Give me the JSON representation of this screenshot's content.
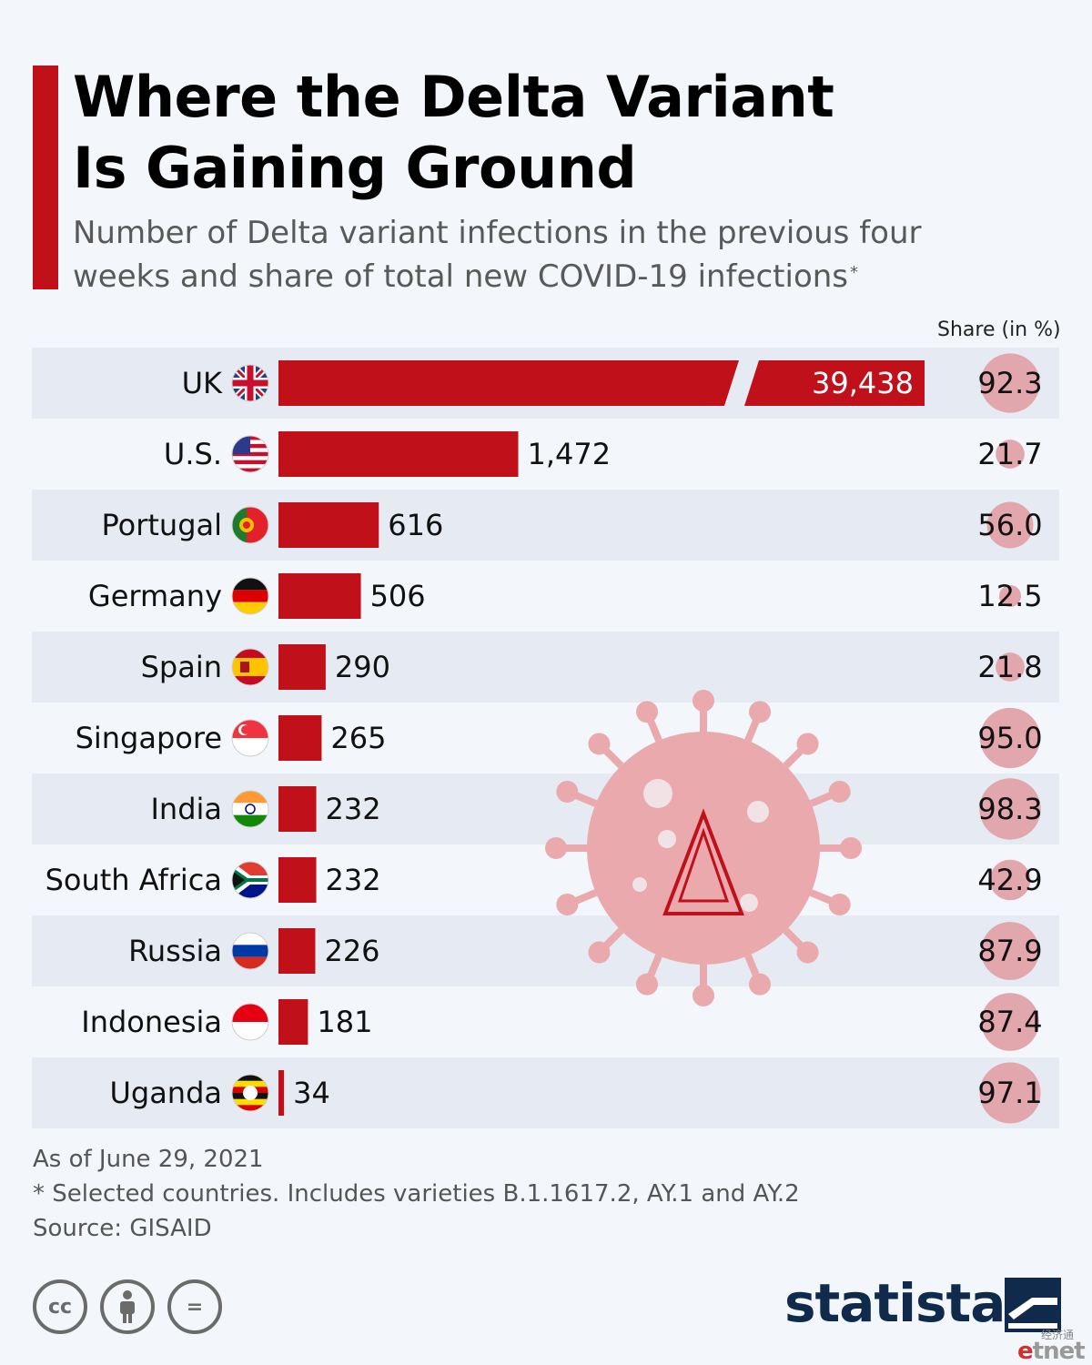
{
  "title_line1": "Where the Delta Variant",
  "title_line2": "Is Gaining Ground",
  "subtitle_line1": "Number of Delta variant infections in the previous four",
  "subtitle_line2": "weeks and share of total new COVID-19 infections",
  "subtitle_mark": "*",
  "share_header": "Share (in %)",
  "colors": {
    "bar": "#c0101a",
    "share_bubble": "#e2a6ad",
    "row_shade": "#e6ebf3",
    "accent": "#c0101a",
    "virus": "#e9a9ad"
  },
  "chart_data": {
    "type": "bar",
    "orientation": "horizontal",
    "categories": [
      "UK",
      "U.S.",
      "Portugal",
      "Germany",
      "Spain",
      "Singapore",
      "India",
      "South Africa",
      "Russia",
      "Indonesia",
      "Uganda"
    ],
    "series": [
      {
        "values": [
          39438,
          1472,
          616,
          506,
          290,
          265,
          232,
          232,
          226,
          181,
          34
        ]
      }
    ],
    "value_labels": [
      "39,438",
      "1,472",
      "616",
      "506",
      "290",
      "265",
      "232",
      "232",
      "226",
      "181",
      "34"
    ],
    "share": [
      92.3,
      21.7,
      56.0,
      12.5,
      21.8,
      95.0,
      98.3,
      42.9,
      87.9,
      87.4,
      97.1
    ],
    "share_labels": [
      "92.3",
      "21.7",
      "56.0",
      "12.5",
      "21.8",
      "95.0",
      "98.3",
      "42.9",
      "87.9",
      "87.4",
      "97.1"
    ],
    "flags": [
      "uk-flag",
      "us-flag",
      "portugal-flag",
      "germany-flag",
      "spain-flag",
      "singapore-flag",
      "india-flag",
      "south-africa-flag",
      "russia-flag",
      "indonesia-flag",
      "uganda-flag"
    ],
    "broken_axis_category": "UK",
    "legend": "none",
    "grid": false
  },
  "footnotes": {
    "date": "As of June 29, 2021",
    "note": "* Selected countries. Includes varieties B.1.1617.2, AY.1 and AY.2",
    "source": "Source: GISAID"
  },
  "license_icons": [
    "creative-commons-icon",
    "attribution-icon",
    "no-derivatives-icon"
  ],
  "license_glyphs": {
    "cc": "cc",
    "eq": "="
  },
  "brand": "statista",
  "watermark_cn": "经济通",
  "watermark_et": {
    "e": "e",
    "rest": "tnet"
  }
}
